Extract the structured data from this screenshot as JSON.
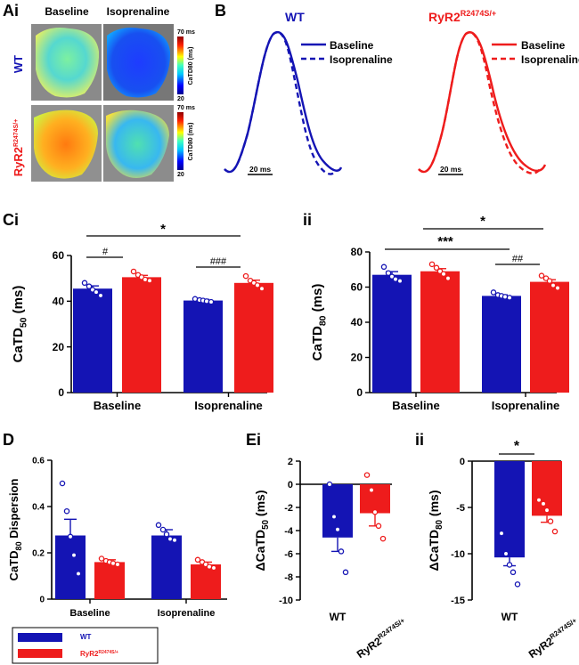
{
  "colors": {
    "wt": "#1414b4",
    "ryr2": "#ee1c1c",
    "axis": "#000000"
  },
  "panels": {
    "ai": {
      "label": "Ai",
      "col_labels": [
        "Baseline",
        "Isoprenaline"
      ],
      "row_labels": [
        "WT",
        "RyR2",
        "R2474S/+"
      ],
      "colorbar_top": "70 ms",
      "colorbar_bottom": "20",
      "colorbar_label_wt": "CaTD80 (ms)",
      "colorbar_label_ryr2": "CaTD80 (ms)"
    },
    "b": {
      "label": "B",
      "wt_title": "WT",
      "ryr2_title_main": "RyR2",
      "ryr2_title_sup": "R2474S/+",
      "legend_baseline": "Baseline",
      "legend_iso": "Isoprenaline",
      "scale_label": "20 ms"
    },
    "ci": {
      "label": "Ci",
      "sig": [
        "*",
        "#",
        "###"
      ]
    },
    "cii": {
      "label": "ii",
      "sig": [
        "*",
        "***",
        "##"
      ]
    },
    "d": {
      "label": "D"
    },
    "ei": {
      "label": "Ei"
    },
    "eii": {
      "label": "ii",
      "sig": [
        "*"
      ]
    }
  },
  "legend_box": {
    "wt": "WT",
    "ryr2_main": "RyR2",
    "ryr2_sup": "R2474S/+"
  },
  "chart_data": [
    {
      "id": "Ci",
      "type": "bar",
      "categories": [
        "Baseline",
        "Isoprenaline"
      ],
      "ylabel": "CaTD50 (ms)",
      "ylim": [
        0,
        60
      ],
      "yticks": [
        0,
        20,
        40,
        60
      ],
      "series": [
        {
          "name": "WT",
          "values": [
            45.5,
            40.3
          ],
          "errors": [
            1.2,
            0.5
          ],
          "points": [
            [
              48,
              46.5,
              45,
              44,
              42.5
            ],
            [
              41,
              40.5,
              40.3,
              40,
              39.7
            ]
          ]
        },
        {
          "name": "RyR2 R2474S/+",
          "values": [
            50.5,
            48
          ],
          "errors": [
            0.8,
            1.2
          ],
          "points": [
            [
              53,
              51.5,
              50.5,
              49.5,
              49
            ],
            [
              51,
              49,
              48,
              47,
              45.5
            ]
          ]
        }
      ]
    },
    {
      "id": "Cii",
      "type": "bar",
      "categories": [
        "Baseline",
        "Isoprenaline"
      ],
      "ylabel": "CaTD80 (ms)",
      "ylim": [
        0,
        80
      ],
      "yticks": [
        0,
        20,
        40,
        60,
        80
      ],
      "series": [
        {
          "name": "WT",
          "values": [
            67,
            55
          ],
          "errors": [
            1.8,
            0.6
          ],
          "points": [
            [
              71.5,
              68,
              66,
              64.5,
              63.5
            ],
            [
              57,
              55.5,
              55,
              54.5,
              54
            ]
          ]
        },
        {
          "name": "RyR2 R2474S/+",
          "values": [
            69,
            63
          ],
          "errors": [
            1.5,
            1.2
          ],
          "points": [
            [
              73,
              71,
              69,
              67.5,
              65
            ],
            [
              66.5,
              65,
              63.5,
              61,
              59.5
            ]
          ]
        }
      ]
    },
    {
      "id": "D",
      "type": "bar",
      "categories": [
        "Baseline",
        "Isoprenaline"
      ],
      "ylabel": "CaTD80 Dispersion",
      "ylim": [
        0,
        0.6
      ],
      "yticks": [
        0,
        0.2,
        0.4,
        0.6
      ],
      "series": [
        {
          "name": "WT",
          "values": [
            0.275,
            0.275
          ],
          "errors": [
            0.07,
            0.025
          ],
          "points": [
            [
              0.5,
              0.38,
              0.27,
              0.19,
              0.11
            ],
            [
              0.32,
              0.3,
              0.28,
              0.26,
              0.255
            ]
          ]
        },
        {
          "name": "RyR2 R2474S/+",
          "values": [
            0.16,
            0.15
          ],
          "errors": [
            0.01,
            0.01
          ],
          "points": [
            [
              0.175,
              0.165,
              0.16,
              0.155,
              0.15
            ],
            [
              0.17,
              0.16,
              0.15,
              0.14,
              0.135
            ]
          ]
        }
      ]
    },
    {
      "id": "Ei",
      "type": "bar",
      "categories": [
        "WT",
        "RyR2 R2474S/+"
      ],
      "ylabel": "ΔCaTD50 (ms)",
      "ylim": [
        -10,
        2
      ],
      "yticks": [
        -10,
        -8,
        -6,
        -4,
        -2,
        0,
        2
      ],
      "values": [
        -4.6,
        -2.5
      ],
      "errors": [
        1.2,
        1.1
      ],
      "points": [
        [
          0,
          -2.8,
          -3.9,
          -5.8,
          -7.6
        ],
        [
          0.8,
          -0.5,
          -2.4,
          -3.6,
          -4.7
        ]
      ]
    },
    {
      "id": "Eii",
      "type": "bar",
      "categories": [
        "WT",
        "RyR2 R2474S/+"
      ],
      "ylabel": "ΔCaTD80 (ms)",
      "ylim": [
        -15,
        0
      ],
      "yticks": [
        -15,
        -10,
        -5,
        0
      ],
      "values": [
        -10.4,
        -5.9
      ],
      "errors": [
        0.9,
        0.7
      ],
      "points": [
        [
          -7.8,
          -10,
          -11.2,
          -12,
          -13.3
        ],
        [
          -4.2,
          -4.6,
          -5.3,
          -6.5,
          -7.6
        ]
      ]
    }
  ]
}
